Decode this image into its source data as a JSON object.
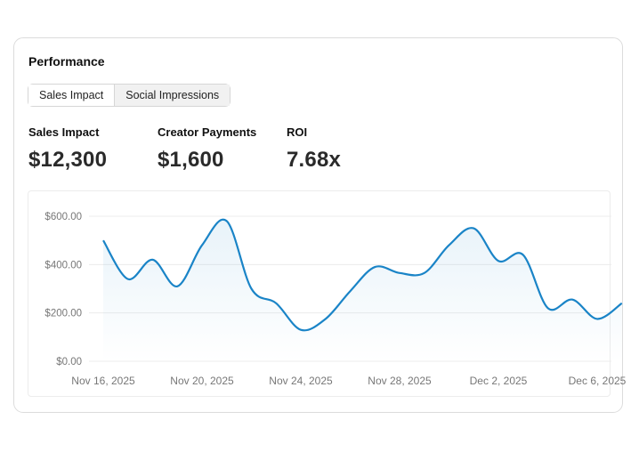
{
  "panel": {
    "title": "Performance"
  },
  "tabs": [
    {
      "label": "Sales Impact",
      "active": false
    },
    {
      "label": "Social Impressions",
      "active": true
    }
  ],
  "metrics": [
    {
      "label": "Sales Impact",
      "value": "$12,300"
    },
    {
      "label": "Creator Payments",
      "value": "$1,600"
    },
    {
      "label": "ROI",
      "value": "7.68x"
    }
  ],
  "colors": {
    "line": "#1a84c7",
    "grid": "#ececec"
  },
  "chart_data": {
    "type": "area",
    "title": "",
    "xlabel": "",
    "ylabel": "",
    "ylim": [
      0,
      600
    ],
    "y_ticks": [
      "$0.00",
      "$200.00",
      "$400.00",
      "$600.00"
    ],
    "y_tick_values": [
      0,
      200,
      400,
      600
    ],
    "x_tick_labels": [
      "Nov 16, 2025",
      "Nov 20, 2025",
      "Nov 24, 2025",
      "Nov 28, 2025",
      "Dec 2, 2025",
      "Dec 6, 2025"
    ],
    "x": [
      "2025-11-16",
      "2025-11-17",
      "2025-11-18",
      "2025-11-19",
      "2025-11-20",
      "2025-11-21",
      "2025-11-22",
      "2025-11-23",
      "2025-11-24",
      "2025-11-25",
      "2025-11-26",
      "2025-11-27",
      "2025-11-28",
      "2025-11-29",
      "2025-11-30",
      "2025-12-01",
      "2025-12-02",
      "2025-12-03",
      "2025-12-04",
      "2025-12-05",
      "2025-12-06",
      "2025-12-07"
    ],
    "series": [
      {
        "values": [
          500,
          340,
          420,
          310,
          480,
          580,
          300,
          240,
          130,
          175,
          290,
          390,
          365,
          365,
          480,
          550,
          415,
          440,
          220,
          255,
          175,
          240
        ]
      }
    ],
    "grid": true,
    "legend": "none"
  }
}
